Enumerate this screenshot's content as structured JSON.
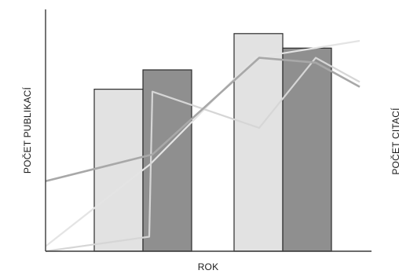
{
  "chart_data": {
    "type": "bar",
    "title": "",
    "xlabel": "ROK",
    "ylabel_left": "POČET PUBLIKACÍ",
    "ylabel_right": "POČET CITACÍ",
    "categories": [
      "",
      ""
    ],
    "ylim": [
      0,
      100
    ],
    "grid": false,
    "bars": [
      {
        "values": [
          67,
          90
        ],
        "color": "#e2e2e2"
      },
      {
        "values": [
          75,
          84
        ],
        "color": "#8f8f8f"
      }
    ],
    "lines": [
      {
        "x": [
          0,
          1,
          2,
          3
        ],
        "values": [
          2,
          36,
          80,
          87
        ],
        "color": "#e4e4e4"
      },
      {
        "x": [
          0,
          0.33,
          0.34,
          0.68,
          0.86,
          1.0
        ],
        "values": [
          0,
          6,
          66,
          51,
          80,
          70
        ],
        "color": "#d6d6d6"
      },
      {
        "x": [
          0,
          0.34,
          0.68,
          0.86,
          1.0
        ],
        "values": [
          29,
          40,
          80,
          78,
          68
        ],
        "color": "#a8a8a8"
      }
    ]
  }
}
